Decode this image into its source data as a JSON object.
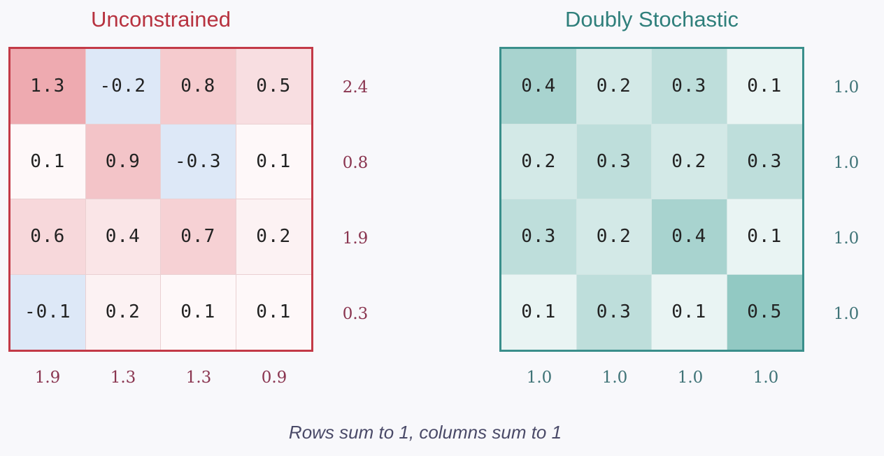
{
  "left_panel": {
    "title": "Unconstrained",
    "matrix": [
      [
        "1.3",
        "-0.2",
        "0.8",
        "0.5"
      ],
      [
        "0.1",
        "0.9",
        "-0.3",
        "0.1"
      ],
      [
        "0.6",
        "0.4",
        "0.7",
        "0.2"
      ],
      [
        "-0.1",
        "0.2",
        "0.1",
        "0.1"
      ]
    ],
    "row_sums": [
      "2.4",
      "0.8",
      "1.9",
      "0.3"
    ],
    "col_sums": [
      "1.9",
      "1.3",
      "1.3",
      "0.9"
    ],
    "positive_color": "#eeaab0",
    "negative_color": "#dde8f7",
    "border_color": "#c33a47"
  },
  "right_panel": {
    "title": "Doubly Stochastic",
    "matrix": [
      [
        "0.4",
        "0.2",
        "0.3",
        "0.1"
      ],
      [
        "0.2",
        "0.3",
        "0.2",
        "0.3"
      ],
      [
        "0.3",
        "0.2",
        "0.4",
        "0.1"
      ],
      [
        "0.1",
        "0.3",
        "0.1",
        "0.5"
      ]
    ],
    "row_sums": [
      "1.0",
      "1.0",
      "1.0",
      "1.0"
    ],
    "col_sums": [
      "1.0",
      "1.0",
      "1.0",
      "1.0"
    ],
    "fill_color": "#7fbfb8",
    "border_color": "#3a8f8b"
  },
  "caption": "Rows sum to 1, columns sum to 1"
}
